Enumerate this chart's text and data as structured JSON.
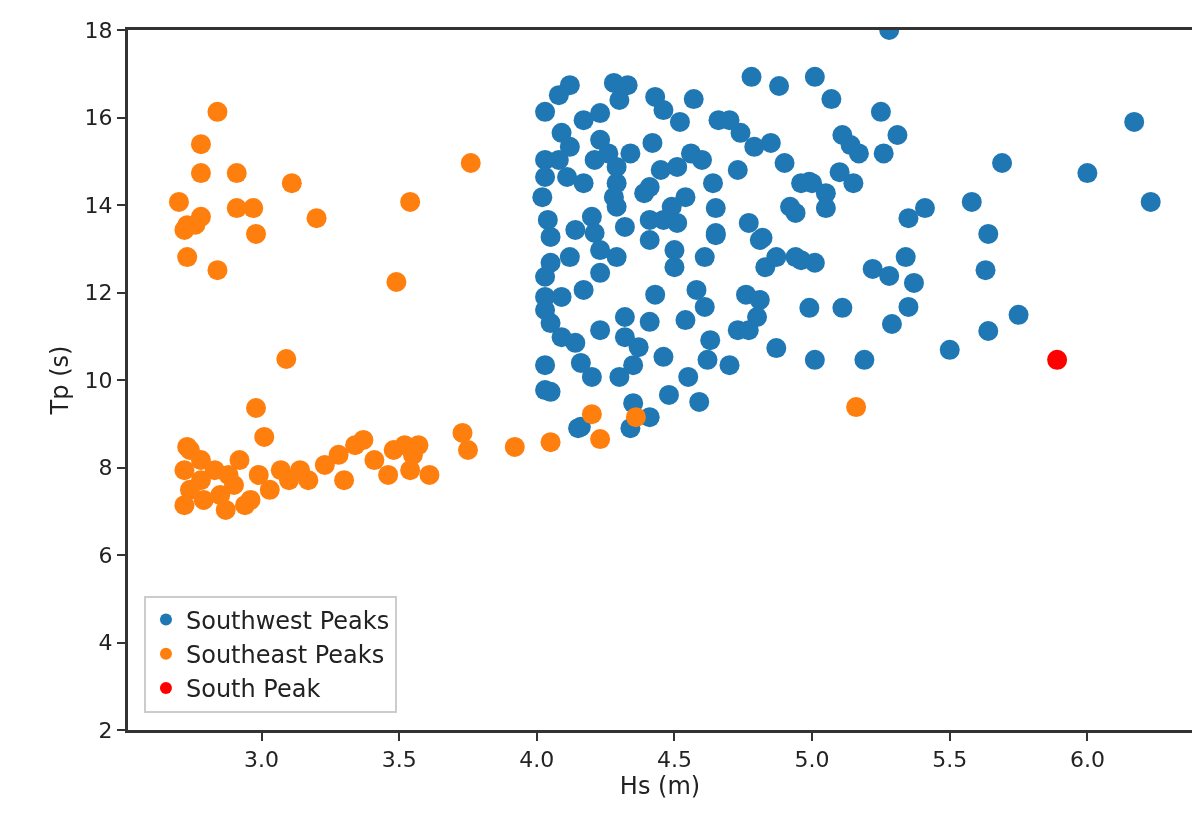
{
  "chart_data": {
    "type": "scatter",
    "xlabel": "Hs (m)",
    "ylabel": "Tp (s)",
    "xlim": [
      2.515,
      6.38
    ],
    "ylim": [
      2,
      18
    ],
    "xticks": [
      {
        "value": 3,
        "label": "3.0"
      },
      {
        "value": 3.5,
        "label": "3.5"
      },
      {
        "value": 4,
        "label": "4.0"
      },
      {
        "value": 4.5,
        "label": "4.5"
      },
      {
        "value": 5,
        "label": "5.0"
      },
      {
        "value": 5.5,
        "label": "5.5"
      },
      {
        "value": 6,
        "label": "6.0"
      }
    ],
    "yticks": [
      2,
      4,
      6,
      8,
      10,
      12,
      14,
      16,
      18
    ],
    "legend": "bottom left",
    "marker": "circle",
    "series": [
      {
        "name": "Southwest Peaks",
        "color": "#1f77b4",
        "x": [
          5.28,
          5.01,
          5.07,
          5.25,
          6.17,
          5.31,
          5.11,
          5.14,
          5.17,
          5.26,
          5.69,
          6.0,
          5.1,
          5.15,
          4.99,
          5.05,
          5.05,
          5.58,
          6.23,
          5.41,
          5.35,
          5.64,
          5.34,
          4.96,
          5.01,
          5.22,
          5.28,
          5.37,
          5.63,
          4.99,
          5.11,
          5.35,
          5.29,
          5.75,
          5.64,
          5.5,
          5.01,
          5.19,
          4.78,
          4.88,
          4.57,
          4.12,
          4.08,
          4.03,
          4.28,
          4.33,
          4.3,
          4.23,
          4.17,
          4.43,
          4.46,
          4.52,
          4.66,
          4.7,
          4.74,
          4.85,
          4.79,
          4.9,
          4.73,
          4.96,
          5.0,
          4.94,
          4.92,
          4.64,
          4.65,
          4.65,
          4.77,
          4.82,
          4.42,
          4.56,
          4.6,
          4.51,
          4.45,
          4.54,
          4.49,
          4.41,
          4.39,
          4.46,
          4.51,
          4.41,
          4.34,
          4.29,
          4.26,
          4.23,
          4.29,
          4.28,
          4.29,
          4.32,
          4.2,
          4.14,
          4.21,
          4.09,
          4.12,
          4.08,
          4.03,
          4.03,
          4.11,
          4.17,
          4.02,
          4.04,
          4.05,
          4.21,
          4.65,
          4.81,
          4.61,
          4.5,
          4.5,
          4.41,
          4.29,
          4.23,
          4.23,
          4.12,
          4.05,
          4.03,
          4.03,
          4.03,
          4.09,
          4.17,
          4.05,
          4.09,
          4.14,
          4.23,
          4.03,
          4.05,
          4.16,
          4.2,
          4.3,
          4.35,
          4.32,
          4.32,
          4.37,
          4.41,
          4.46,
          4.43,
          4.54,
          4.58,
          4.61,
          4.63,
          4.62,
          4.55,
          4.48,
          4.59,
          4.7,
          4.76,
          4.81,
          4.8,
          4.73,
          4.77,
          4.83,
          4.87,
          4.94,
          4.87,
          4.16,
          4.35,
          4.41,
          4.34,
          4.03,
          4.15
        ],
        "values": [
          18.0,
          16.93,
          16.42,
          16.13,
          15.9,
          15.6,
          15.6,
          15.37,
          15.18,
          15.18,
          14.96,
          14.73,
          14.75,
          14.5,
          14.53,
          14.27,
          13.93,
          14.07,
          14.07,
          13.93,
          13.7,
          13.34,
          12.81,
          12.74,
          12.68,
          12.54,
          12.38,
          12.22,
          12.51,
          11.65,
          11.65,
          11.67,
          11.28,
          11.49,
          11.12,
          10.69,
          10.46,
          10.46,
          16.93,
          16.72,
          16.42,
          16.74,
          16.51,
          16.13,
          16.79,
          16.74,
          16.4,
          16.1,
          15.94,
          16.47,
          16.17,
          15.9,
          15.94,
          15.94,
          15.65,
          15.42,
          15.33,
          14.96,
          14.8,
          14.5,
          14.5,
          13.82,
          13.96,
          14.5,
          13.93,
          13.36,
          13.59,
          13.25,
          15.42,
          15.18,
          15.03,
          14.87,
          14.8,
          14.18,
          13.96,
          14.41,
          14.27,
          13.66,
          13.59,
          13.66,
          15.18,
          14.87,
          15.18,
          15.49,
          14.5,
          14.18,
          13.96,
          13.5,
          13.73,
          13.43,
          13.36,
          15.65,
          15.33,
          15.03,
          15.03,
          14.64,
          14.64,
          14.5,
          14.18,
          13.66,
          13.27,
          15.03,
          13.31,
          13.2,
          12.81,
          12.58,
          12.97,
          13.2,
          12.81,
          12.97,
          12.45,
          12.81,
          12.68,
          12.36,
          11.9,
          11.6,
          11.9,
          12.06,
          11.3,
          10.98,
          10.85,
          11.14,
          10.34,
          9.73,
          10.39,
          10.07,
          10.07,
          10.34,
          11.44,
          10.98,
          10.75,
          11.33,
          10.53,
          11.95,
          11.37,
          12.06,
          11.67,
          10.91,
          10.46,
          10.07,
          9.66,
          9.5,
          10.34,
          11.95,
          11.83,
          11.44,
          11.14,
          11.14,
          12.58,
          12.81,
          12.81,
          10.73,
          8.93,
          9.47,
          9.15,
          8.9,
          9.77,
          8.9
        ]
      },
      {
        "name": "Southeast Peaks",
        "color": "#ff7f0e",
        "x": [
          2.84,
          2.78,
          2.78,
          2.91,
          3.11,
          3.76,
          2.7,
          3.54,
          2.78,
          2.73,
          2.72,
          2.76,
          2.91,
          2.97,
          2.98,
          3.2,
          2.73,
          2.84,
          3.49,
          3.09,
          2.98,
          3.01,
          2.73,
          3.73,
          3.75,
          3.92,
          3.61,
          4.2,
          4.36,
          4.05,
          4.23,
          5.16,
          2.72,
          2.74,
          2.72,
          2.78,
          2.79,
          2.83,
          2.85,
          2.87,
          2.9,
          2.92,
          2.96,
          2.99,
          3.03,
          3.07,
          3.1,
          3.14,
          3.17,
          3.23,
          3.28,
          3.3,
          3.34,
          3.37,
          3.41,
          3.46,
          3.48,
          3.52,
          3.54,
          3.55,
          3.57,
          2.94,
          2.74,
          2.78,
          2.88
        ],
        "values": [
          16.13,
          15.39,
          14.73,
          14.73,
          14.5,
          14.96,
          14.07,
          14.07,
          13.73,
          13.54,
          13.43,
          13.55,
          13.93,
          13.93,
          13.34,
          13.7,
          12.81,
          12.51,
          12.24,
          10.48,
          9.36,
          8.7,
          8.47,
          8.79,
          8.4,
          8.47,
          7.83,
          9.22,
          9.15,
          8.58,
          8.65,
          9.38,
          7.94,
          7.49,
          7.14,
          7.71,
          7.26,
          7.94,
          7.37,
          7.03,
          7.6,
          8.17,
          7.26,
          7.83,
          7.49,
          7.94,
          7.71,
          7.94,
          7.71,
          8.06,
          8.29,
          7.71,
          8.51,
          8.63,
          8.17,
          7.83,
          8.4,
          8.51,
          7.94,
          8.29,
          8.51,
          7.14,
          8.4,
          8.17,
          7.83
        ]
      },
      {
        "name": "South Peak",
        "color": "#ff0000",
        "x": [
          5.89
        ],
        "values": [
          10.46
        ]
      }
    ]
  }
}
